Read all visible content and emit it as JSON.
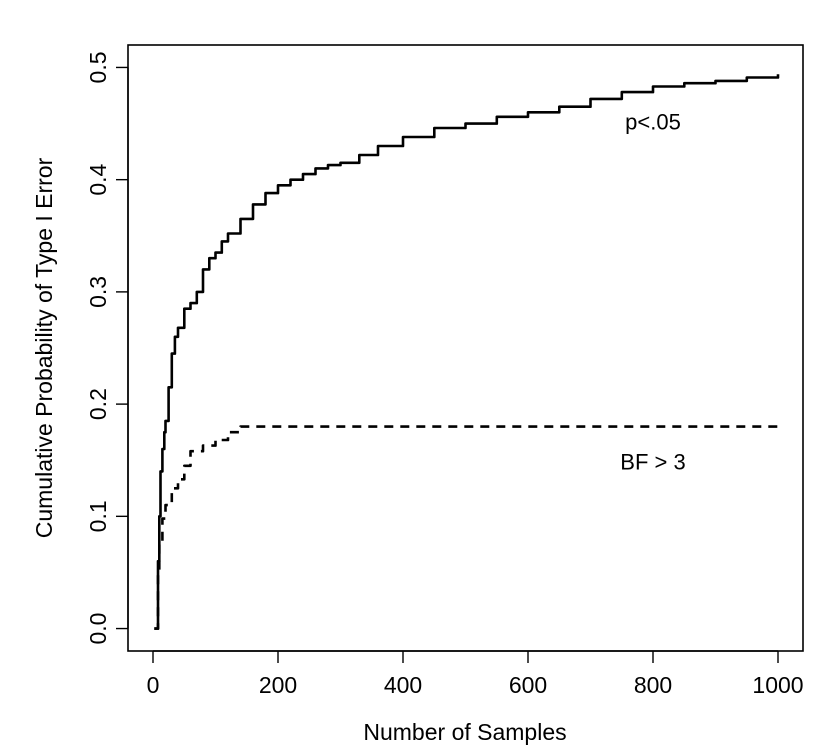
{
  "chart_data": {
    "type": "line",
    "title": "",
    "xlabel": "Number of Samples",
    "ylabel": "Cumulative Probability of Type I Error",
    "xlim": [
      -40,
      1040
    ],
    "ylim": [
      -0.02,
      0.52
    ],
    "x_ticks": [
      0,
      200,
      400,
      600,
      800,
      1000
    ],
    "x_tick_labels": [
      "0",
      "200",
      "400",
      "600",
      "800",
      "1000"
    ],
    "y_ticks": [
      0.0,
      0.1,
      0.2,
      0.3,
      0.4,
      0.5
    ],
    "y_tick_labels": [
      "0.0",
      "0.1",
      "0.2",
      "0.3",
      "0.4",
      "0.5"
    ],
    "grid": false,
    "legend": "none",
    "series": [
      {
        "style": "solid",
        "color": "#000000",
        "x": [
          2,
          5,
          8,
          10,
          12,
          15,
          18,
          20,
          25,
          30,
          35,
          40,
          50,
          60,
          70,
          80,
          90,
          100,
          110,
          120,
          140,
          160,
          180,
          200,
          220,
          240,
          260,
          280,
          300,
          330,
          360,
          400,
          450,
          500,
          550,
          600,
          650,
          700,
          750,
          800,
          850,
          900,
          950,
          1000
        ],
        "y": [
          0.0,
          0.0,
          0.06,
          0.1,
          0.14,
          0.16,
          0.175,
          0.185,
          0.215,
          0.245,
          0.26,
          0.268,
          0.285,
          0.29,
          0.3,
          0.32,
          0.33,
          0.335,
          0.345,
          0.352,
          0.365,
          0.378,
          0.388,
          0.395,
          0.4,
          0.405,
          0.41,
          0.413,
          0.415,
          0.422,
          0.43,
          0.438,
          0.446,
          0.45,
          0.456,
          0.46,
          0.465,
          0.472,
          0.478,
          0.483,
          0.486,
          0.488,
          0.491,
          0.494
        ]
      },
      {
        "style": "dashed",
        "color": "#000000",
        "x": [
          2,
          5,
          8,
          10,
          15,
          20,
          30,
          40,
          50,
          60,
          80,
          100,
          120,
          140,
          160,
          1000
        ],
        "y": [
          0.0,
          0.0,
          0.05,
          0.075,
          0.098,
          0.11,
          0.125,
          0.133,
          0.145,
          0.158,
          0.163,
          0.168,
          0.175,
          0.18,
          0.18,
          0.18
        ]
      }
    ],
    "annotations": [
      {
        "text": "p<.05",
        "x": 800,
        "y": 0.45
      },
      {
        "text": "BF > 3",
        "x": 800,
        "y": 0.147
      }
    ]
  }
}
